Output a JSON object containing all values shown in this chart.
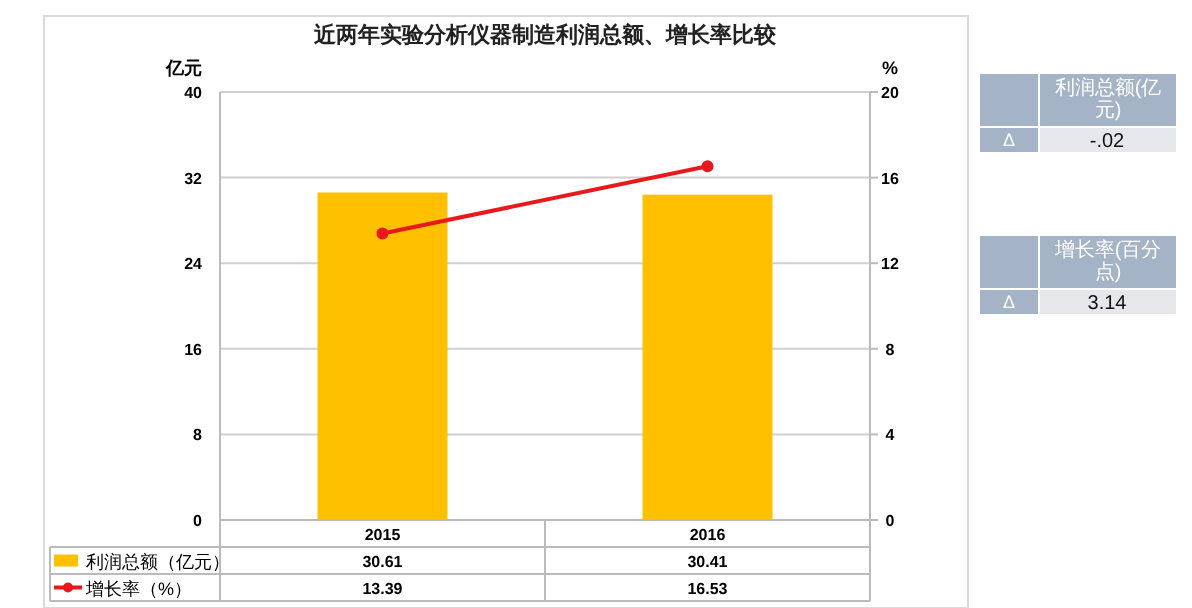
{
  "chart_data": [
    {
      "type": "bar",
      "title": "近两年实验分析仪器制造利润总额、增长率比较",
      "ylabel": "亿元",
      "y2label": "%",
      "categories": [
        "2015",
        "2016"
      ],
      "series": [
        {
          "name": "利润总额（亿元）",
          "color": "#ffc000",
          "values": [
            30.61,
            30.41
          ]
        },
        {
          "name": "增长率（%）",
          "type": "line",
          "axis": "y2",
          "color": "#e8191c",
          "values": [
            13.39,
            16.53
          ]
        }
      ],
      "ylim": [
        0,
        40
      ],
      "yticks": [
        0,
        8,
        16,
        24,
        32,
        40
      ],
      "y2lim": [
        0,
        20
      ],
      "y2ticks": [
        0,
        4,
        8,
        12,
        16,
        20
      ],
      "grid": "y",
      "data_labels": true,
      "legend": "bottom",
      "marker": "circle"
    },
    {
      "type": "other",
      "annotations": [
        "利润总额(亿元)",
        "Δ",
        "-.02",
        "增长率(百分点)",
        "Δ",
        "3.14"
      ]
    }
  ]
}
